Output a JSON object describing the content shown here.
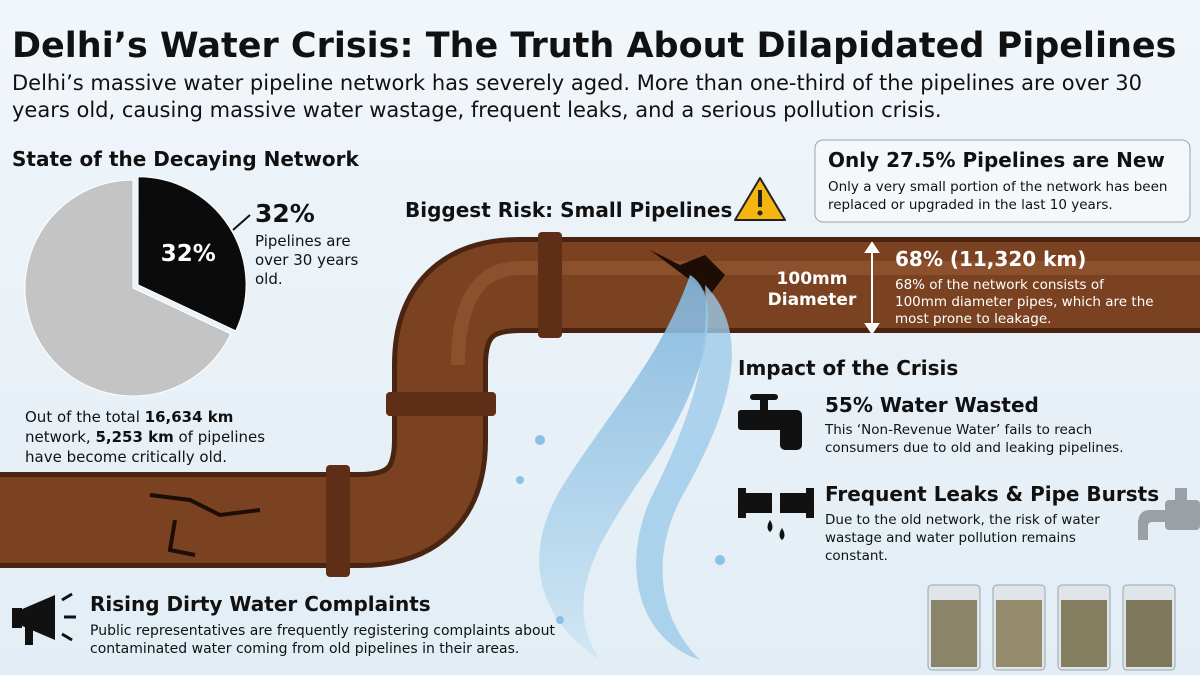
{
  "header": {
    "title": "Delhi’s Water Crisis: The Truth About Dilapidated Pipelines",
    "subtitle_lines": [
      "Delhi’s massive water pipeline network has severely aged. More than one-third of the pipelines are over 30",
      "years old, causing massive water wastage, frequent leaks, and a serious pollution crisis."
    ]
  },
  "network": {
    "heading": "State of the Decaying Network",
    "callout_value": "32%",
    "callout_lines": [
      "Pipelines are",
      "over 30 years",
      "old."
    ],
    "note_line1_before": "Out of the total ",
    "total_length": "16,634 km",
    "note_line2_before": "network, ",
    "old_length": "5,253 km",
    "note_line2_after": " of pipelines",
    "note_line3": "have become critically old."
  },
  "chart_data": {
    "type": "pie",
    "categories": [
      null,
      null
    ],
    "values": [
      32,
      68
    ],
    "value_labels": [
      "32%",
      null
    ],
    "colors": [
      "#0b0b0b",
      "#c4c4c4"
    ]
  },
  "risk": {
    "heading": "Biggest Risk: Small Pipelines",
    "diameter_lines": [
      "100mm",
      "Diameter"
    ],
    "stat": "68% (11,320 km)",
    "desc_lines": [
      "68% of the network consists of",
      "100mm diameter pipes, which are the",
      "most prone to leakage."
    ]
  },
  "new_pipes": {
    "title": "Only 27.5% Pipelines are New",
    "desc_lines": [
      "Only a very small portion of the network has been",
      "replaced or upgraded in the last 10 years."
    ]
  },
  "impact": {
    "heading": "Impact of the Crisis",
    "items": [
      {
        "title": "55% Water Wasted",
        "desc_lines": [
          "This ‘Non-Revenue Water’ fails to reach",
          "consumers due to old and leaking pipelines."
        ]
      },
      {
        "title": "Frequent Leaks & Pipe Bursts",
        "desc_lines": [
          "Due to the old network, the risk of water",
          "wastage and water pollution remains",
          "constant."
        ]
      }
    ]
  },
  "complaints": {
    "title": "Rising Dirty Water Complaints",
    "desc_lines": [
      "Public representatives are frequently registering complaints about",
      "contaminated water coming from old pipelines in their areas."
    ]
  }
}
